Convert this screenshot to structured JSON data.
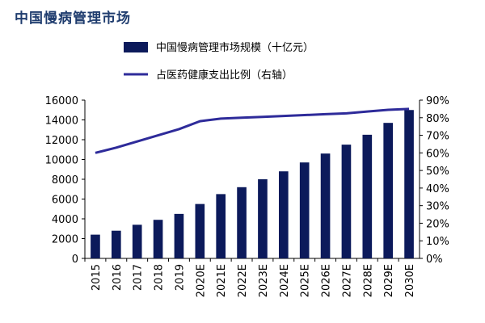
{
  "title": "中国慢病管理市场",
  "colors": {
    "bar": "#0c1a5b",
    "line": "#2e2b9a",
    "title": "#1f3c6e",
    "axis": "#000000"
  },
  "chart_data": {
    "type": "bar+line",
    "categories": [
      "2015",
      "2016",
      "2017",
      "2018",
      "2019",
      "2020E",
      "2021E",
      "2022E",
      "2023E",
      "2024E",
      "2025E",
      "2026E",
      "2027E",
      "2028E",
      "2029E",
      "2030E"
    ],
    "series": [
      {
        "name": "中国慢病管理市场规模（十亿元）",
        "type": "bar",
        "axis": "left",
        "values": [
          2400,
          2800,
          3400,
          3900,
          4500,
          5500,
          6500,
          7200,
          8000,
          8800,
          9700,
          10600,
          11500,
          12500,
          13700,
          15000
        ]
      },
      {
        "name": "占医药健康支出比例（右轴）",
        "type": "line",
        "axis": "right",
        "values": [
          60,
          63,
          66.5,
          70,
          73.5,
          78,
          79.5,
          80,
          80.5,
          81,
          81.5,
          82,
          82.5,
          83.5,
          84.5,
          85
        ]
      }
    ],
    "left_axis": {
      "ylim": [
        0,
        16000
      ],
      "ticks": [
        "0",
        "2000",
        "4000",
        "6000",
        "8000",
        "10000",
        "12000",
        "14000",
        "16000"
      ]
    },
    "right_axis": {
      "ylim": [
        0,
        90
      ],
      "ticks": [
        "0%",
        "10%",
        "20%",
        "30%",
        "40%",
        "50%",
        "60%",
        "70%",
        "80%",
        "90%"
      ]
    },
    "legend": {
      "position": "top-center"
    }
  }
}
